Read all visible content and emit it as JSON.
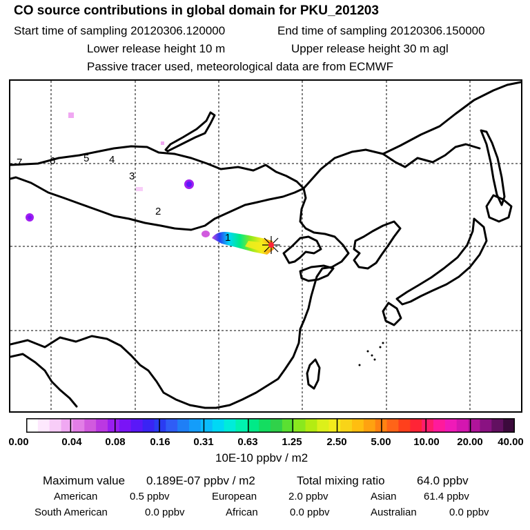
{
  "header": {
    "title": "CO  source contributions in global domain for PKU_201203",
    "start_time": "Start time of sampling 20120306.120000",
    "end_time": "End time of sampling 20120306.150000",
    "lower_release": "Lower release height   10 m",
    "upper_release": "Upper release height   30 m    agl",
    "tracer_note": "Passive tracer used, meteorological data are from ECMWF"
  },
  "map": {
    "region_labels": [
      "1",
      "2",
      "3",
      "4",
      "5",
      "6",
      "7"
    ]
  },
  "colorbar": {
    "ticks": [
      "0.00",
      "0.04",
      "0.08",
      "0.16",
      "0.31",
      "0.63",
      "1.25",
      "2.50",
      "5.00",
      "10.00",
      "20.00",
      "40.00"
    ],
    "unit": "10E-10 ppbv / m2",
    "colors": [
      "#ffffff",
      "#fde8fd",
      "#f8cdf8",
      "#f0a8f2",
      "#e27ee6",
      "#d15ade",
      "#bb38e2",
      "#9a1ef0",
      "#7a14f6",
      "#5a18f8",
      "#3a24f4",
      "#2a3cf2",
      "#2f5df6",
      "#1f7ff6",
      "#149dfa",
      "#0abcfb",
      "#00d8f5",
      "#00ecda",
      "#00f2b0",
      "#00ea88",
      "#14dd60",
      "#30d14a",
      "#5ae032",
      "#8ae81e",
      "#b4ec12",
      "#dcf01a",
      "#f4ec1c",
      "#f8d418",
      "#ffbe10",
      "#ffa210",
      "#ff8212",
      "#ff6418",
      "#ff401c",
      "#ff2436",
      "#ff1c6c",
      "#ff1a9c",
      "#f01ab8",
      "#d416b0",
      "#b0149a",
      "#8a1282",
      "#621060",
      "#3c0a3c"
    ]
  },
  "summary": {
    "max_label": "Maximum value",
    "max_value": "0.189E-07 ppbv / m2",
    "total_label": "Total mixing ratio",
    "total_value": "64.0 ppbv",
    "sources": [
      {
        "name": "American",
        "value": "0.5 ppbv"
      },
      {
        "name": "European",
        "value": "2.0 ppbv"
      },
      {
        "name": "Asian",
        "value": "61.4 ppbv"
      },
      {
        "name": "South American",
        "value": "0.0 ppbv"
      },
      {
        "name": "African",
        "value": "0.0 ppbv"
      },
      {
        "name": "Australian",
        "value": "0.0 ppbv"
      }
    ]
  }
}
